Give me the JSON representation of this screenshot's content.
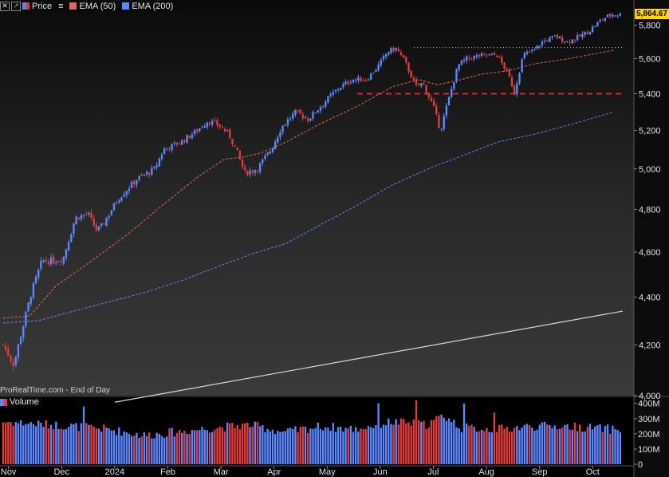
{
  "toolbar": {
    "price_label": "Price",
    "ema50_label": "EMA (50)",
    "ema200_label": "EMA (200)"
  },
  "attribution": "ProRealTime.com - End of Day",
  "volume_label": "Volume",
  "last_price": "5,864.67",
  "colors": {
    "up": "#5b87ff",
    "down": "#e23b3b",
    "ema50": "#e06a5a",
    "ema200": "#5b87ff",
    "support": "#e0202a",
    "resistance": "#cccccc",
    "trendline": "#d8d8d8"
  },
  "chart_data": {
    "type": "candlestick",
    "price_axis": {
      "ticks": [
        "4,000",
        "4,200",
        "4,400",
        "4,600",
        "4,800",
        "5,000",
        "5,200",
        "5,400",
        "5,600",
        "5,800"
      ],
      "ylim": [
        4000,
        5880
      ]
    },
    "volume_axis": {
      "ticks": [
        "0",
        "100M",
        "200M",
        "300M",
        "400M"
      ],
      "ylim": [
        0,
        430
      ]
    },
    "x_labels": [
      "Nov",
      "Dec",
      "2024",
      "Feb",
      "Mar",
      "Apr",
      "May",
      "Jun",
      "Jul",
      "Aug",
      "Sep",
      "Oct"
    ],
    "close_path": [
      [
        0,
        4200
      ],
      [
        0.6,
        4120
      ],
      [
        1.6,
        4420
      ],
      [
        2.2,
        4560
      ],
      [
        2.9,
        4560
      ],
      [
        3.4,
        4570
      ],
      [
        4.1,
        4760
      ],
      [
        4.8,
        4780
      ],
      [
        5.3,
        4700
      ],
      [
        5.6,
        4720
      ],
      [
        6.5,
        4850
      ],
      [
        7.6,
        4950
      ],
      [
        8.6,
        5000
      ],
      [
        9.1,
        5100
      ],
      [
        10.1,
        5140
      ],
      [
        11.0,
        5200
      ],
      [
        11.6,
        5250
      ],
      [
        12.2,
        5230
      ],
      [
        12.8,
        5180
      ],
      [
        13.3,
        5080
      ],
      [
        13.7,
        4980
      ],
      [
        14.4,
        5000
      ],
      [
        15.2,
        5100
      ],
      [
        15.8,
        5220
      ],
      [
        16.6,
        5300
      ],
      [
        17.3,
        5260
      ],
      [
        18.0,
        5330
      ],
      [
        19.0,
        5430
      ],
      [
        19.8,
        5480
      ],
      [
        20.6,
        5480
      ],
      [
        21.3,
        5560
      ],
      [
        21.8,
        5640
      ],
      [
        22.3,
        5660
      ],
      [
        22.8,
        5580
      ],
      [
        23.4,
        5440
      ],
      [
        23.8,
        5460
      ],
      [
        24.4,
        5330
      ],
      [
        24.8,
        5200
      ],
      [
        25.3,
        5380
      ],
      [
        25.8,
        5560
      ],
      [
        26.3,
        5600
      ],
      [
        27.2,
        5620
      ],
      [
        28.0,
        5620
      ],
      [
        28.6,
        5520
      ],
      [
        29.0,
        5410
      ],
      [
        29.5,
        5620
      ],
      [
        30.1,
        5650
      ],
      [
        30.6,
        5700
      ],
      [
        31.3,
        5730
      ],
      [
        32.0,
        5700
      ],
      [
        32.5,
        5720
      ],
      [
        33.2,
        5760
      ],
      [
        33.8,
        5820
      ],
      [
        34.2,
        5850
      ],
      [
        34.6,
        5865
      ]
    ],
    "ema50_path": [
      [
        0,
        4310
      ],
      [
        1.5,
        4320
      ],
      [
        3.0,
        4450
      ],
      [
        5.0,
        4560
      ],
      [
        7.0,
        4680
      ],
      [
        9.0,
        4820
      ],
      [
        11.0,
        4960
      ],
      [
        12.5,
        5050
      ],
      [
        13.5,
        5060
      ],
      [
        14.5,
        5080
      ],
      [
        16.0,
        5140
      ],
      [
        18.0,
        5240
      ],
      [
        20.0,
        5330
      ],
      [
        22.0,
        5440
      ],
      [
        23.5,
        5480
      ],
      [
        24.5,
        5450
      ],
      [
        25.5,
        5470
      ],
      [
        27.0,
        5510
      ],
      [
        28.5,
        5530
      ],
      [
        30.0,
        5570
      ],
      [
        32.0,
        5600
      ],
      [
        34.5,
        5650
      ]
    ],
    "ema200_path": [
      [
        0,
        4290
      ],
      [
        2.0,
        4300
      ],
      [
        4.0,
        4340
      ],
      [
        6.0,
        4380
      ],
      [
        8.0,
        4420
      ],
      [
        10.0,
        4470
      ],
      [
        12.0,
        4530
      ],
      [
        14.0,
        4590
      ],
      [
        16.0,
        4640
      ],
      [
        18.0,
        4730
      ],
      [
        20.0,
        4820
      ],
      [
        22.0,
        4920
      ],
      [
        24.0,
        5000
      ],
      [
        26.0,
        5070
      ],
      [
        28.0,
        5140
      ],
      [
        30.0,
        5180
      ],
      [
        32.0,
        5230
      ],
      [
        34.5,
        5300
      ]
    ],
    "trendline": [
      [
        6.3,
        3975
      ],
      [
        35.0,
        4340
      ]
    ],
    "support_level": 5400,
    "resistance_level": 5665,
    "resistance_range": [
      23.2,
      35.0
    ],
    "support_range": [
      20.0,
      35.0
    ],
    "volume_profile": [
      [
        0,
        280
      ],
      [
        4,
        250
      ],
      [
        6,
        230
      ],
      [
        8,
        190
      ],
      [
        12,
        240
      ],
      [
        14,
        260
      ],
      [
        16,
        210
      ],
      [
        18,
        250
      ],
      [
        20,
        230
      ],
      [
        22,
        280
      ],
      [
        24,
        260
      ],
      [
        25,
        320
      ],
      [
        26,
        240
      ],
      [
        28,
        230
      ],
      [
        30,
        250
      ],
      [
        32,
        250
      ],
      [
        34.6,
        230
      ]
    ],
    "volume_spikes": [
      [
        4.6,
        380
      ],
      [
        21.3,
        400
      ],
      [
        23.4,
        420
      ],
      [
        26.2,
        400
      ],
      [
        27.8,
        340
      ]
    ],
    "candle_count": 246
  }
}
